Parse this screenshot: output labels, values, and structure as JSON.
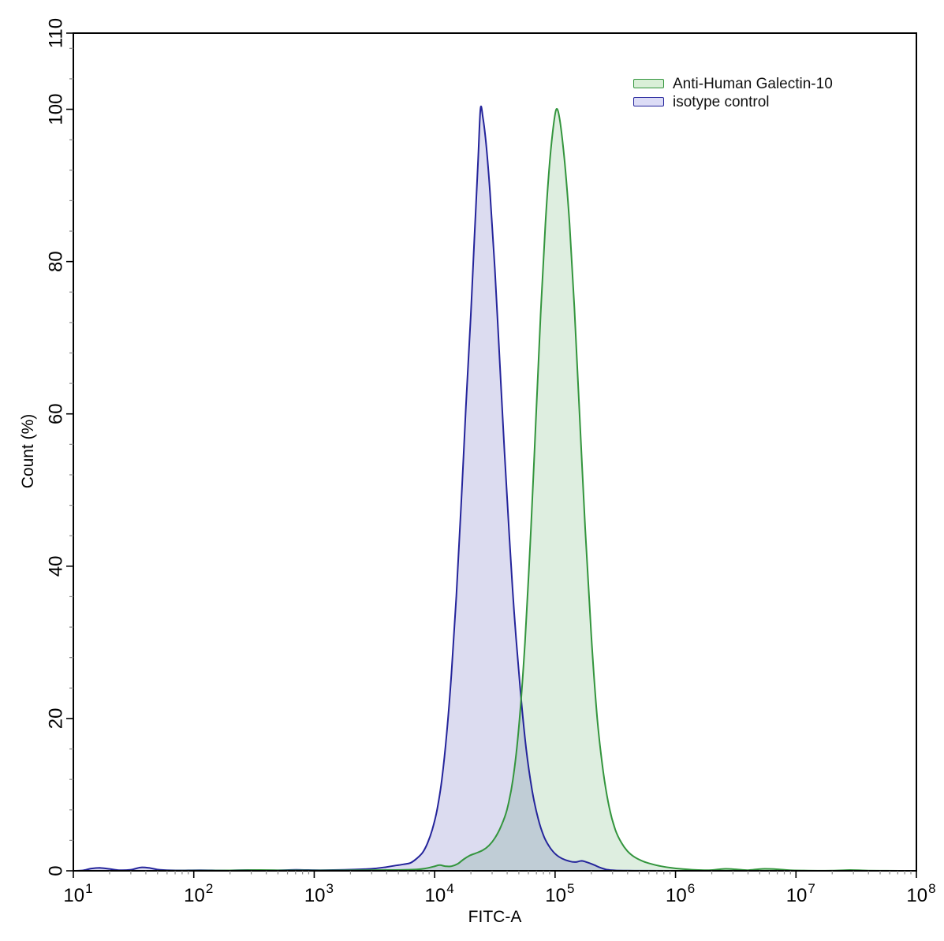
{
  "chart_data": {
    "type": "area",
    "subtype": "flow-cytometry-histogram",
    "title": "",
    "xlabel": "FITC-A",
    "ylabel": "Count (%)",
    "x_scale": "log10",
    "x_log_range": [
      1,
      8
    ],
    "ylim": [
      0,
      110
    ],
    "x_tick_base": "10",
    "x_major_tick_exponents": [
      1,
      2,
      3,
      4,
      5,
      6,
      7,
      8
    ],
    "x_minor_subdivisions": [
      2,
      3,
      4,
      5,
      6,
      7,
      8,
      9
    ],
    "y_major_ticks": [
      0,
      20,
      40,
      60,
      80,
      100,
      110
    ],
    "y_minor_step": 4,
    "grid": false,
    "frame": true,
    "legend_position": "upper right inside plot",
    "colors": {
      "background": "#ffffff",
      "axis": "#000000",
      "minor_tick": "#8a8a8a"
    },
    "series": [
      {
        "name": "Anti-Human Galectin-10",
        "line_color": "#33953d",
        "fill_color": "rgba(51,149,61,0.16)",
        "swatch_fill": "#d9efd7",
        "peak_log_x": 5.01,
        "peak_y": 100,
        "points_logx_y": [
          [
            1.0,
            0
          ],
          [
            1.5,
            0
          ],
          [
            2.0,
            0.02
          ],
          [
            2.3,
            0.05
          ],
          [
            2.55,
            0.1
          ],
          [
            2.75,
            0.05
          ],
          [
            3.0,
            0.04
          ],
          [
            3.3,
            0.06
          ],
          [
            3.6,
            0.1
          ],
          [
            3.75,
            0.12
          ],
          [
            3.85,
            0.18
          ],
          [
            3.92,
            0.3
          ],
          [
            3.99,
            0.55
          ],
          [
            4.04,
            0.75
          ],
          [
            4.09,
            0.6
          ],
          [
            4.14,
            0.6
          ],
          [
            4.19,
            0.9
          ],
          [
            4.24,
            1.5
          ],
          [
            4.29,
            2.0
          ],
          [
            4.34,
            2.3
          ],
          [
            4.4,
            2.7
          ],
          [
            4.45,
            3.3
          ],
          [
            4.5,
            4.3
          ],
          [
            4.55,
            5.8
          ],
          [
            4.6,
            8.0
          ],
          [
            4.65,
            12
          ],
          [
            4.7,
            19
          ],
          [
            4.75,
            30
          ],
          [
            4.8,
            45
          ],
          [
            4.84,
            59
          ],
          [
            4.88,
            73
          ],
          [
            4.92,
            85
          ],
          [
            4.95,
            92
          ],
          [
            4.98,
            97
          ],
          [
            5.01,
            100
          ],
          [
            5.04,
            98.5
          ],
          [
            5.08,
            93
          ],
          [
            5.12,
            85
          ],
          [
            5.16,
            74
          ],
          [
            5.2,
            61
          ],
          [
            5.25,
            45
          ],
          [
            5.3,
            31
          ],
          [
            5.35,
            20
          ],
          [
            5.4,
            13
          ],
          [
            5.45,
            8.3
          ],
          [
            5.5,
            5.4
          ],
          [
            5.55,
            3.7
          ],
          [
            5.6,
            2.6
          ],
          [
            5.66,
            1.8
          ],
          [
            5.73,
            1.25
          ],
          [
            5.8,
            0.9
          ],
          [
            5.88,
            0.6
          ],
          [
            5.96,
            0.4
          ],
          [
            6.05,
            0.25
          ],
          [
            6.15,
            0.13
          ],
          [
            6.28,
            0.08
          ],
          [
            6.4,
            0.25
          ],
          [
            6.5,
            0.2
          ],
          [
            6.6,
            0.08
          ],
          [
            6.72,
            0.25
          ],
          [
            6.85,
            0.2
          ],
          [
            6.95,
            0.07
          ],
          [
            7.1,
            0.03
          ],
          [
            7.3,
            0.02
          ],
          [
            7.45,
            0.1
          ],
          [
            7.58,
            0.04
          ],
          [
            7.75,
            0.01
          ],
          [
            8.0,
            0
          ]
        ]
      },
      {
        "name": "isotype control",
        "line_color": "#24249b",
        "fill_color": "rgba(40,40,160,0.16)",
        "swatch_fill": "#dcdcf6",
        "peak_log_x": 4.38,
        "peak_y": 100,
        "points_logx_y": [
          [
            1.0,
            0
          ],
          [
            1.08,
            0.05
          ],
          [
            1.15,
            0.3
          ],
          [
            1.22,
            0.38
          ],
          [
            1.3,
            0.25
          ],
          [
            1.38,
            0.08
          ],
          [
            1.48,
            0.15
          ],
          [
            1.56,
            0.45
          ],
          [
            1.64,
            0.35
          ],
          [
            1.72,
            0.12
          ],
          [
            1.85,
            0.05
          ],
          [
            2.05,
            0.08
          ],
          [
            2.25,
            0.05
          ],
          [
            2.45,
            0.1
          ],
          [
            2.65,
            0.06
          ],
          [
            2.85,
            0.12
          ],
          [
            3.05,
            0.08
          ],
          [
            3.25,
            0.12
          ],
          [
            3.42,
            0.22
          ],
          [
            3.5,
            0.3
          ],
          [
            3.6,
            0.5
          ],
          [
            3.68,
            0.7
          ],
          [
            3.74,
            0.85
          ],
          [
            3.8,
            1.05
          ],
          [
            3.85,
            1.6
          ],
          [
            3.9,
            2.4
          ],
          [
            3.94,
            3.6
          ],
          [
            3.98,
            5.4
          ],
          [
            4.02,
            8.0
          ],
          [
            4.06,
            12
          ],
          [
            4.1,
            18
          ],
          [
            4.14,
            26
          ],
          [
            4.18,
            36
          ],
          [
            4.22,
            48
          ],
          [
            4.26,
            61
          ],
          [
            4.3,
            73
          ],
          [
            4.33,
            83
          ],
          [
            4.36,
            93
          ],
          [
            4.38,
            100
          ],
          [
            4.4,
            99
          ],
          [
            4.43,
            95
          ],
          [
            4.46,
            89
          ],
          [
            4.5,
            79
          ],
          [
            4.54,
            67
          ],
          [
            4.58,
            55
          ],
          [
            4.62,
            44
          ],
          [
            4.66,
            34
          ],
          [
            4.71,
            24
          ],
          [
            4.76,
            16
          ],
          [
            4.81,
            10.5
          ],
          [
            4.86,
            6.8
          ],
          [
            4.91,
            4.4
          ],
          [
            4.96,
            3.0
          ],
          [
            5.01,
            2.1
          ],
          [
            5.06,
            1.6
          ],
          [
            5.12,
            1.25
          ],
          [
            5.17,
            1.15
          ],
          [
            5.22,
            1.3
          ],
          [
            5.27,
            1.1
          ],
          [
            5.32,
            0.8
          ],
          [
            5.37,
            0.45
          ],
          [
            5.43,
            0.16
          ],
          [
            5.5,
            0.05
          ],
          [
            5.6,
            0.02
          ],
          [
            5.75,
            0.01
          ],
          [
            6.0,
            0
          ],
          [
            6.5,
            0
          ],
          [
            7.0,
            0
          ],
          [
            7.5,
            0
          ],
          [
            8.0,
            0
          ]
        ]
      }
    ]
  }
}
